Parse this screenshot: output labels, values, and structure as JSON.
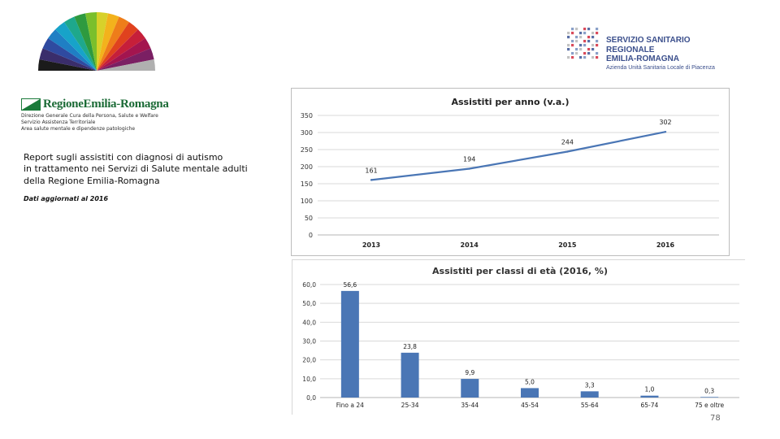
{
  "header": {
    "ssr_line1": "SERVIZIO SANITARIO REGIONALE",
    "ssr_line2": "EMILIA-ROMAGNA",
    "ssr_line3": "Azienda Unità Sanitaria Locale di Piacenza",
    "rer_name": "RegioneEmilia-Romagna",
    "rer_sub1": "Direzione Generale Cura della Persona, Salute e Welfare",
    "rer_sub2": "Servizio Assistenza Territoriale",
    "rer_sub3": "Area salute mentale e dipendenze patologiche"
  },
  "report": {
    "line1": "Report sugli assistiti con diagnosi di autismo",
    "line2": "in trattamento nei Servizi di Salute mentale adulti",
    "line3": "della Regione Emilia-Romagna",
    "updated": "Dati aggiornati al 2016"
  },
  "page_number": "78",
  "colors": {
    "accent": "#4a76b5",
    "rer_green": "#1a6a35",
    "ssr_blue": "#3b4f8c"
  },
  "chart_data": [
    {
      "type": "line",
      "title": "Assistiti per anno (v.a.)",
      "categories": [
        "2013",
        "2014",
        "2015",
        "2016"
      ],
      "values": [
        161,
        194,
        244,
        302
      ],
      "data_labels": [
        "161",
        "194",
        "244",
        "302"
      ],
      "ylim": [
        0,
        350
      ],
      "yticks": [
        "0",
        "50",
        "100",
        "150",
        "200",
        "250",
        "300",
        "350"
      ],
      "grid": true,
      "legend": "none"
    },
    {
      "type": "bar",
      "title": "Assistiti per classi di età (2016, %)",
      "categories": [
        "Fino a 24",
        "25-34",
        "35-44",
        "45-54",
        "55-64",
        "65-74",
        "75 e oltre"
      ],
      "values": [
        56.6,
        23.8,
        9.9,
        5.0,
        3.3,
        1.0,
        0.3
      ],
      "data_labels": [
        "56,6",
        "23,8",
        "9,9",
        "5,0",
        "3,3",
        "1,0",
        "0,3"
      ],
      "ylim": [
        0,
        60
      ],
      "yticks": [
        "0,0",
        "10,0",
        "20,0",
        "30,0",
        "40,0",
        "50,0",
        "60,0"
      ],
      "grid": true,
      "legend": "none"
    }
  ]
}
